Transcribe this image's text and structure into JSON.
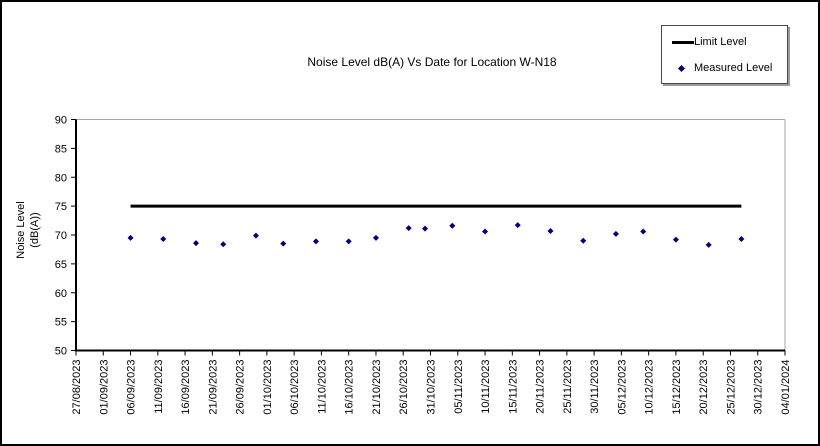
{
  "chart_data": {
    "type": "line+scatter",
    "title": "Noise Level dB(A) Vs Date for Location W-N18",
    "ylabel": "Noise Level (dB(A))",
    "ylabel_lines": [
      "Noise Level",
      "(dB(A))"
    ],
    "xlabel": "",
    "grid": false,
    "plot_background": "#ffffff",
    "ylim": [
      50,
      90
    ],
    "y_axis": {
      "min": 50,
      "max": 90,
      "step": 5,
      "tick_labels": [
        "50",
        "55",
        "60",
        "65",
        "70",
        "75",
        "80",
        "85",
        "90"
      ]
    },
    "x_axis": {
      "start_date": "27/08/2023",
      "end_date": "04/01/2024",
      "tick_interval_days": 5,
      "span_days": 130,
      "tick_labels": [
        "27/08/2023",
        "01/09/2023",
        "06/09/2023",
        "11/09/2023",
        "16/09/2023",
        "21/09/2023",
        "26/09/2023",
        "01/10/2023",
        "06/10/2023",
        "11/10/2023",
        "16/10/2023",
        "21/10/2023",
        "26/10/2023",
        "31/10/2023",
        "05/11/2023",
        "10/11/2023",
        "15/11/2023",
        "20/11/2023",
        "25/11/2023",
        "30/11/2023",
        "05/12/2023",
        "10/12/2023",
        "15/12/2023",
        "20/12/2023",
        "25/12/2023",
        "30/12/2023",
        "04/01/2024"
      ]
    },
    "legend": {
      "position": "top-right",
      "entries": [
        {
          "label": "Limit Level",
          "marker": "line",
          "color": "#000000"
        },
        {
          "label": "Measured Level",
          "marker": "diamond",
          "color": "#000080"
        }
      ]
    },
    "series": [
      {
        "name": "Limit Level",
        "type": "line",
        "color": "#000000",
        "value": 75,
        "start_day": 10,
        "end_day": 122,
        "start_date": "06/09/2023",
        "end_date": "27/12/2023"
      },
      {
        "name": "Measured Level",
        "type": "scatter",
        "color": "#000080",
        "marker": "diamond",
        "points": [
          {
            "date": "06/09/2023",
            "day": 10,
            "value": 69.5
          },
          {
            "date": "12/09/2023",
            "day": 16,
            "value": 69.3
          },
          {
            "date": "18/09/2023",
            "day": 22,
            "value": 68.6
          },
          {
            "date": "23/09/2023",
            "day": 27,
            "value": 68.4
          },
          {
            "date": "29/09/2023",
            "day": 33,
            "value": 69.9
          },
          {
            "date": "04/10/2023",
            "day": 38,
            "value": 68.5
          },
          {
            "date": "10/10/2023",
            "day": 44,
            "value": 68.9
          },
          {
            "date": "16/10/2023",
            "day": 50,
            "value": 68.9
          },
          {
            "date": "21/10/2023",
            "day": 55,
            "value": 69.5
          },
          {
            "date": "27/10/2023",
            "day": 61,
            "value": 71.2
          },
          {
            "date": "30/10/2023",
            "day": 64,
            "value": 71.1
          },
          {
            "date": "04/11/2023",
            "day": 69,
            "value": 71.6
          },
          {
            "date": "10/11/2023",
            "day": 75,
            "value": 70.6
          },
          {
            "date": "16/11/2023",
            "day": 81,
            "value": 71.7
          },
          {
            "date": "22/11/2023",
            "day": 87,
            "value": 70.7
          },
          {
            "date": "28/11/2023",
            "day": 93,
            "value": 69.0
          },
          {
            "date": "04/12/2023",
            "day": 99,
            "value": 70.2
          },
          {
            "date": "09/12/2023",
            "day": 104,
            "value": 70.6
          },
          {
            "date": "15/12/2023",
            "day": 110,
            "value": 69.2
          },
          {
            "date": "21/12/2023",
            "day": 116,
            "value": 68.3
          },
          {
            "date": "27/12/2023",
            "day": 122,
            "value": 69.3
          }
        ]
      }
    ]
  }
}
